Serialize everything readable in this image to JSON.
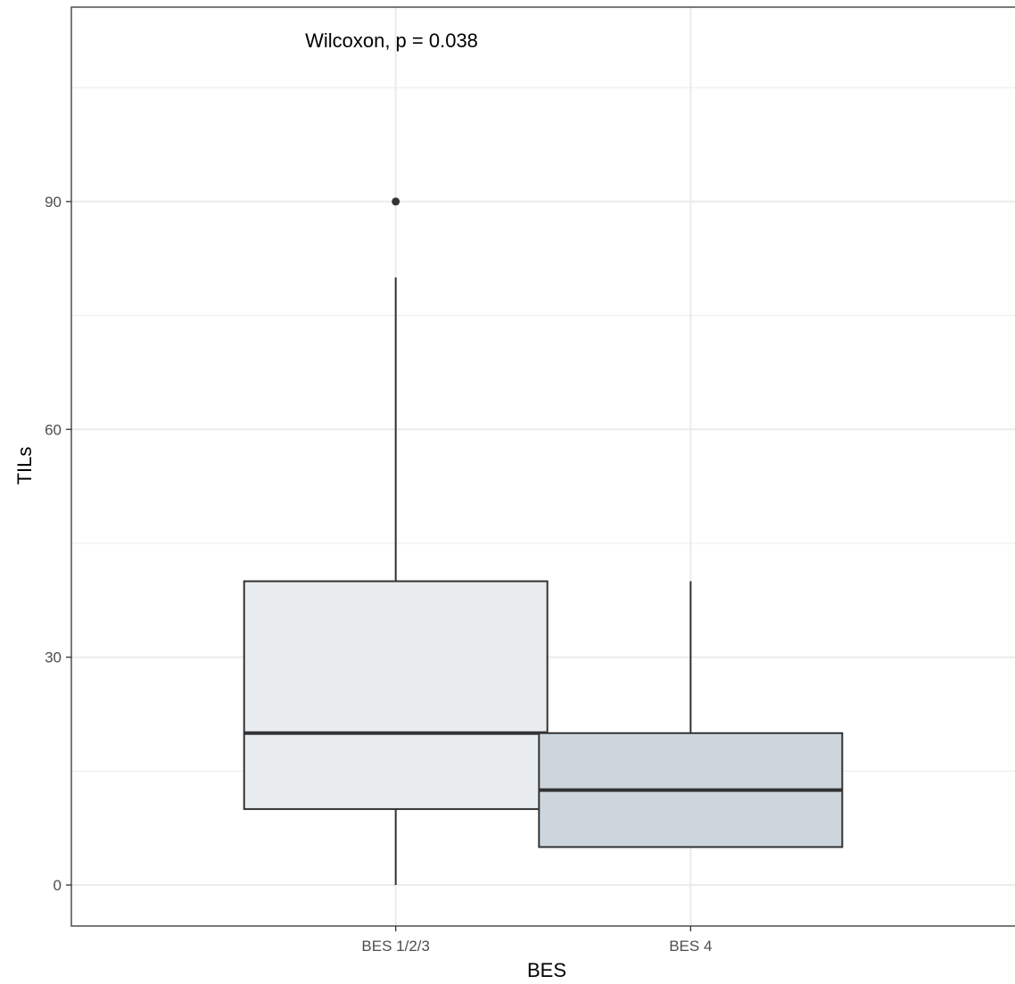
{
  "chart_data": {
    "type": "boxplot",
    "title": "",
    "xlabel": "BES",
    "ylabel": "TILs",
    "annotation": "Wilcoxon, p = 0.038",
    "categories": [
      "BES 1/2/3",
      "BES 4"
    ],
    "boxes": [
      {
        "category": "BES 1/2/3",
        "min": 0,
        "q1": 10,
        "median": 20,
        "q3": 40,
        "max": 80,
        "outliers": [
          90
        ]
      },
      {
        "category": "BES 4",
        "min": 5,
        "q1": 5,
        "median": 12.5,
        "q3": 20,
        "max": 40,
        "outliers": []
      }
    ],
    "ylim": [
      -5.4,
      115.6
    ],
    "yticks": [
      "0",
      "30",
      "60",
      "90"
    ],
    "grid": true,
    "legend": "none",
    "colors": {
      "box_fill": [
        "#e9ecef",
        "#ced6dd"
      ],
      "box_stroke": "#333333",
      "grid": "#ebebeb",
      "panel_border": "#333333"
    }
  }
}
